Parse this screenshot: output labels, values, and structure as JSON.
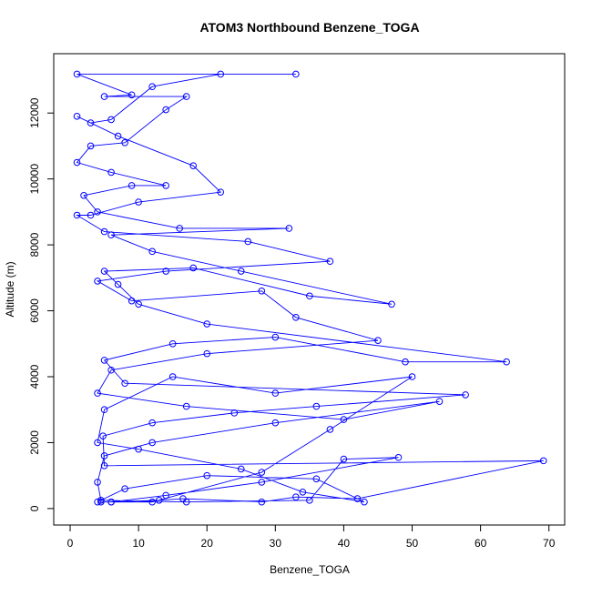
{
  "chart_data": {
    "type": "line",
    "markers": true,
    "title": "ATOM3 Northbound Benzene_TOGA",
    "x_label": "Benzene_TOGA",
    "y_label": "Altitude (m)",
    "color": "#0000ff",
    "x": [
      4.5,
      6,
      13,
      16.5,
      28,
      33,
      42,
      69.2,
      5,
      4.8,
      12,
      24,
      36,
      57.8,
      8,
      5,
      15,
      30,
      49,
      63.8,
      20,
      10,
      7,
      5,
      18,
      35,
      47,
      25,
      12,
      6,
      32,
      16,
      4,
      2,
      9,
      14,
      6,
      1,
      3,
      8,
      14,
      17,
      5,
      9,
      1,
      33,
      22,
      12,
      6,
      3,
      1,
      7,
      18,
      22,
      10,
      3,
      1,
      5,
      26,
      38,
      14,
      4,
      9,
      28,
      33,
      45,
      20,
      6,
      4,
      17,
      40,
      54,
      30,
      12,
      5,
      4,
      4.5,
      17,
      35,
      40,
      48,
      28,
      14,
      6,
      12,
      28,
      38,
      50,
      30,
      15,
      5,
      4,
      10,
      25,
      34,
      43,
      36,
      20,
      8,
      4
    ],
    "values": [
      200,
      200,
      250,
      300,
      200,
      350,
      300,
      1450,
      1300,
      2200,
      2600,
      2900,
      3100,
      3450,
      3800,
      4500,
      5000,
      5200,
      4450,
      4450,
      5600,
      6200,
      6800,
      7200,
      7300,
      6450,
      6200,
      7200,
      7800,
      8300,
      8500,
      8500,
      9000,
      9500,
      9800,
      9800,
      10200,
      10500,
      11000,
      11100,
      12100,
      12500,
      12500,
      12550,
      13180,
      13180,
      13180,
      12800,
      11800,
      11700,
      11900,
      11300,
      10400,
      9600,
      9300,
      8900,
      8900,
      8400,
      8100,
      7500,
      7200,
      6900,
      6300,
      6600,
      5800,
      5100,
      4700,
      4200,
      3500,
      3100,
      2700,
      3250,
      2600,
      2000,
      1600,
      800,
      250,
      200,
      250,
      1500,
      1550,
      800,
      400,
      200,
      200,
      1100,
      2400,
      4000,
      3500,
      4000,
      3000,
      2000,
      1800,
      1200,
      500,
      200,
      900,
      1000,
      600,
      200
    ],
    "xlim": [
      -2.4,
      72.3
    ],
    "ylim": [
      -500,
      13800
    ],
    "xticks": [
      0,
      10,
      20,
      30,
      40,
      50,
      60,
      70
    ],
    "yticks": [
      0,
      2000,
      4000,
      6000,
      8000,
      10000,
      12000
    ]
  }
}
